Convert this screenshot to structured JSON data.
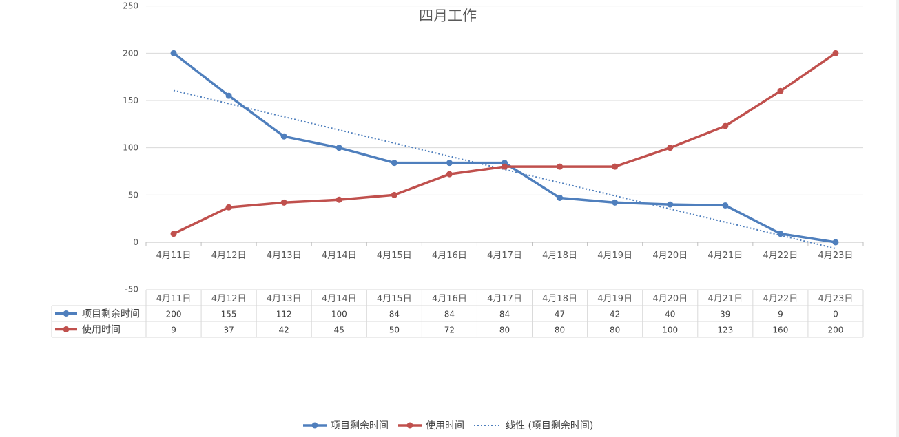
{
  "chart_data": {
    "type": "line",
    "title": "四月工作",
    "categories": [
      "4月11日",
      "4月12日",
      "4月13日",
      "4月14日",
      "4月15日",
      "4月16日",
      "4月17日",
      "4月18日",
      "4月19日",
      "4月20日",
      "4月21日",
      "4月22日",
      "4月23日"
    ],
    "ylim": [
      -50,
      250
    ],
    "yticks": [
      "-50",
      "0",
      "50",
      "100",
      "150",
      "200",
      "250"
    ],
    "grid": true,
    "series": [
      {
        "name": "项目剩余时间",
        "color": "#4f7fbd",
        "values": [
          200,
          155,
          112,
          100,
          84,
          84,
          84,
          47,
          42,
          40,
          39,
          9,
          0
        ]
      },
      {
        "name": "使用时间",
        "color": "#c0504d",
        "values": [
          9,
          37,
          42,
          45,
          50,
          72,
          80,
          80,
          80,
          100,
          123,
          160,
          200
        ]
      }
    ],
    "trendline": {
      "name": "线性 (项目剩余时间)",
      "color": "#4f7fbd",
      "type": "linear",
      "of": "项目剩余时间",
      "start": 160.6,
      "end": -6.6
    },
    "data_table": true,
    "legend_position": "bottom"
  }
}
